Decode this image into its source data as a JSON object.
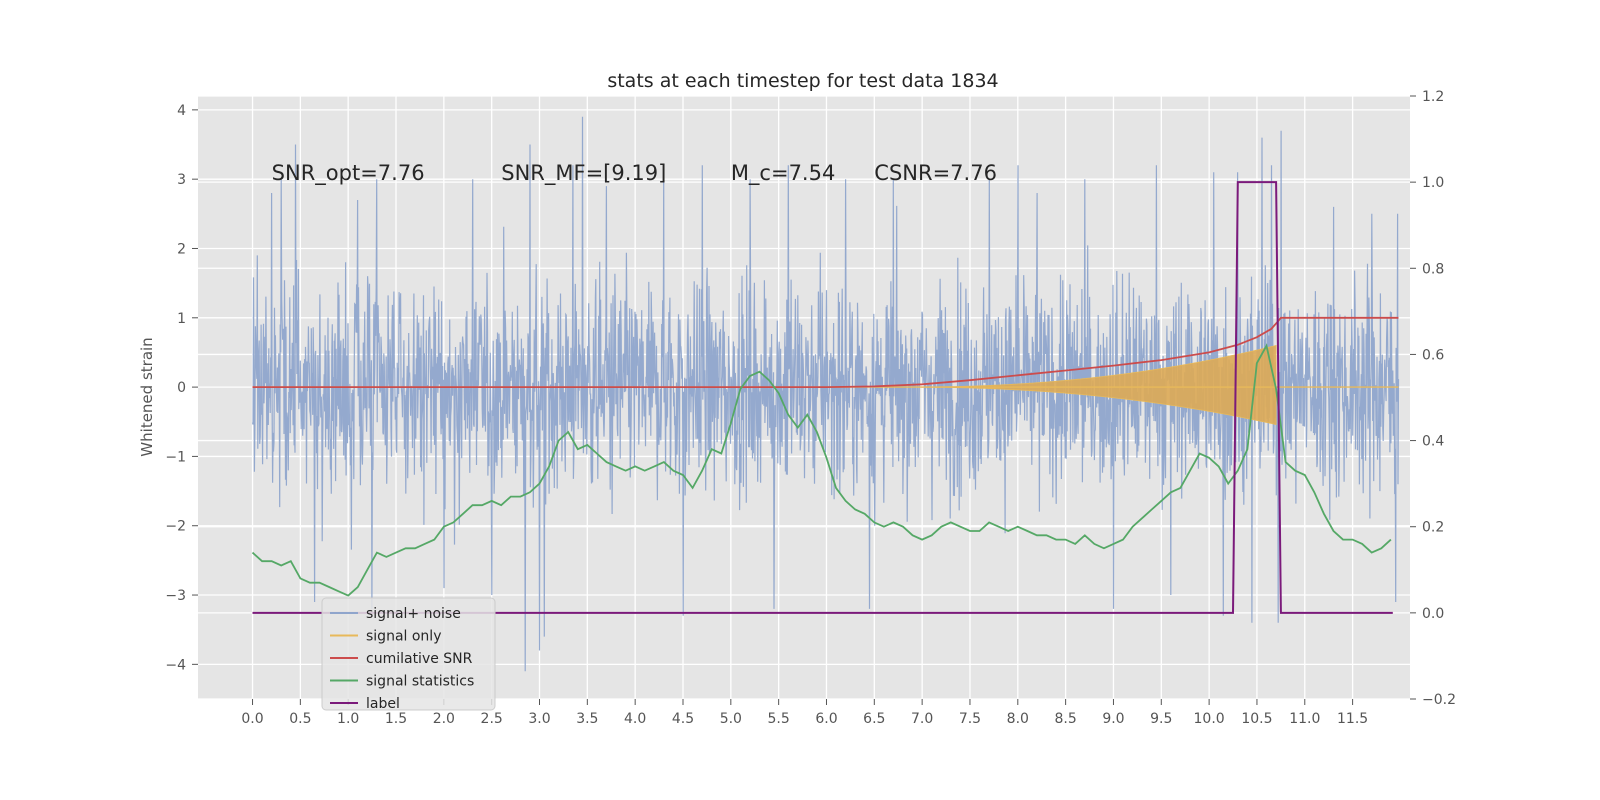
{
  "chart_data": {
    "type": "line",
    "title": "stats at each timestep for test data 1834",
    "ylabel": "Whitened strain",
    "xlim": [
      -0.57,
      12.1
    ],
    "ylim": [
      -4.5,
      4.2
    ],
    "y2lim": [
      -0.2,
      1.2
    ],
    "x_ticks": [
      "0.0",
      "0.5",
      "1.0",
      "1.5",
      "2.0",
      "2.5",
      "3.0",
      "3.5",
      "4.0",
      "4.5",
      "5.0",
      "5.5",
      "6.0",
      "6.5",
      "7.0",
      "7.5",
      "8.0",
      "8.5",
      "9.0",
      "9.5",
      "10.0",
      "10.5",
      "11.0",
      "11.5"
    ],
    "y_ticks": [
      "4",
      "3",
      "2",
      "1",
      "0",
      "−1",
      "−2",
      "−3",
      "−4"
    ],
    "y2_ticks": [
      "1.2",
      "1.0",
      "0.8",
      "0.6",
      "0.4",
      "0.2",
      "0.0",
      "−0.2"
    ],
    "grid": true,
    "legend_position": "lower-left",
    "annotations": [
      {
        "text": "SNR_opt=7.76",
        "x": 0.2,
        "y": 3.0
      },
      {
        "text": "SNR_MF=[9.19]",
        "x": 2.6,
        "y": 3.0
      },
      {
        "text": "M_c=7.54",
        "x": 5.0,
        "y": 3.0
      },
      {
        "text": "CSNR=7.76",
        "x": 6.5,
        "y": 3.0
      }
    ],
    "series": [
      {
        "name": "signal+ noise",
        "axis": "left",
        "color": "#8fa5cc",
        "t_start": 0.0,
        "t_end": 11.98,
        "noise_sigma": 1.0,
        "peaks": [
          [
            0.05,
            1.9
          ],
          [
            0.2,
            2.8
          ],
          [
            0.3,
            3.0
          ],
          [
            0.45,
            3.5
          ],
          [
            0.65,
            -3.1
          ],
          [
            1.1,
            2.7
          ],
          [
            1.3,
            3.0
          ],
          [
            1.25,
            -3.2
          ],
          [
            2.0,
            -2.9
          ],
          [
            2.3,
            3.0
          ],
          [
            2.5,
            -3.0
          ],
          [
            2.85,
            -4.1
          ],
          [
            2.9,
            3.5
          ],
          [
            3.05,
            -3.6
          ],
          [
            3.35,
            3.2
          ],
          [
            3.45,
            3.9
          ],
          [
            3.7,
            2.9
          ],
          [
            4.3,
            3.1
          ],
          [
            4.5,
            -3.3
          ],
          [
            4.7,
            3.2
          ],
          [
            5.2,
            3.0
          ],
          [
            5.45,
            -3.2
          ],
          [
            5.6,
            3.2
          ],
          [
            6.0,
            1.4
          ],
          [
            6.2,
            3.0
          ],
          [
            6.45,
            -3.2
          ],
          [
            6.7,
            3.0
          ],
          [
            7.7,
            3.0
          ],
          [
            8.0,
            3.2
          ],
          [
            8.2,
            2.8
          ],
          [
            8.7,
            3.0
          ],
          [
            9.0,
            -3.2
          ],
          [
            9.45,
            3.2
          ],
          [
            9.6,
            -3.0
          ],
          [
            10.05,
            3.1
          ],
          [
            10.15,
            -3.3
          ],
          [
            10.3,
            3.1
          ],
          [
            10.45,
            3.3
          ],
          [
            10.55,
            3.6
          ],
          [
            10.65,
            3.2
          ],
          [
            10.75,
            3.7
          ],
          [
            10.72,
            -3.4
          ],
          [
            10.45,
            -3.4
          ],
          [
            11.3,
            2.6
          ],
          [
            11.7,
            2.5
          ],
          [
            11.97,
            2.5
          ],
          [
            11.95,
            -3.1
          ],
          [
            3.0,
            -3.8
          ]
        ]
      },
      {
        "name": "signal only",
        "axis": "left",
        "color": "#e8b95a",
        "fill_color": "#ddaa55",
        "onset": 6.8,
        "merger": 10.7,
        "t_end": 11.98,
        "amplitude_at_merger": 0.6
      },
      {
        "name": "cumilative SNR",
        "axis": "left",
        "color": "#cc4c4c",
        "x": [
          0.0,
          6.0,
          6.5,
          7.0,
          7.5,
          8.0,
          8.5,
          9.0,
          9.5,
          10.0,
          10.3,
          10.5,
          10.65,
          10.72,
          10.75,
          11.98
        ],
        "y": [
          0.0,
          0.0,
          0.01,
          0.04,
          0.1,
          0.17,
          0.24,
          0.31,
          0.39,
          0.5,
          0.61,
          0.72,
          0.84,
          0.95,
          1.0,
          1.0
        ]
      },
      {
        "name": "signal statistics",
        "axis": "right",
        "color": "#55a866",
        "x": [
          0.0,
          0.1,
          0.2,
          0.3,
          0.4,
          0.5,
          0.6,
          0.7,
          0.8,
          0.9,
          1.0,
          1.1,
          1.2,
          1.3,
          1.4,
          1.5,
          1.6,
          1.7,
          1.8,
          1.9,
          2.0,
          2.1,
          2.2,
          2.3,
          2.4,
          2.5,
          2.6,
          2.7,
          2.8,
          2.9,
          3.0,
          3.1,
          3.2,
          3.3,
          3.4,
          3.5,
          3.6,
          3.7,
          3.8,
          3.9,
          4.0,
          4.1,
          4.2,
          4.3,
          4.4,
          4.5,
          4.6,
          4.7,
          4.8,
          4.9,
          5.0,
          5.1,
          5.2,
          5.3,
          5.4,
          5.5,
          5.6,
          5.7,
          5.8,
          5.9,
          6.0,
          6.1,
          6.2,
          6.3,
          6.4,
          6.5,
          6.6,
          6.7,
          6.8,
          6.9,
          7.0,
          7.1,
          7.2,
          7.3,
          7.4,
          7.5,
          7.6,
          7.7,
          7.8,
          7.9,
          8.0,
          8.1,
          8.2,
          8.3,
          8.4,
          8.5,
          8.6,
          8.7,
          8.8,
          8.9,
          9.0,
          9.1,
          9.2,
          9.3,
          9.4,
          9.5,
          9.6,
          9.7,
          9.8,
          9.9,
          10.0,
          10.1,
          10.2,
          10.3,
          10.4,
          10.5,
          10.6,
          10.7,
          10.8,
          10.9,
          11.0,
          11.1,
          11.2,
          11.3,
          11.4,
          11.5,
          11.6,
          11.7,
          11.8,
          11.9
        ],
        "y": [
          0.14,
          0.12,
          0.12,
          0.11,
          0.12,
          0.08,
          0.07,
          0.07,
          0.06,
          0.05,
          0.04,
          0.06,
          0.1,
          0.14,
          0.13,
          0.14,
          0.15,
          0.15,
          0.16,
          0.17,
          0.2,
          0.21,
          0.23,
          0.25,
          0.25,
          0.26,
          0.25,
          0.27,
          0.27,
          0.28,
          0.3,
          0.34,
          0.4,
          0.42,
          0.38,
          0.39,
          0.37,
          0.35,
          0.34,
          0.33,
          0.34,
          0.33,
          0.34,
          0.35,
          0.33,
          0.32,
          0.29,
          0.33,
          0.38,
          0.37,
          0.44,
          0.52,
          0.55,
          0.56,
          0.54,
          0.51,
          0.46,
          0.43,
          0.46,
          0.42,
          0.36,
          0.29,
          0.26,
          0.24,
          0.23,
          0.21,
          0.2,
          0.21,
          0.2,
          0.18,
          0.17,
          0.18,
          0.2,
          0.21,
          0.2,
          0.19,
          0.19,
          0.21,
          0.2,
          0.19,
          0.2,
          0.19,
          0.18,
          0.18,
          0.17,
          0.17,
          0.16,
          0.18,
          0.16,
          0.15,
          0.16,
          0.17,
          0.2,
          0.22,
          0.24,
          0.26,
          0.28,
          0.29,
          0.33,
          0.37,
          0.36,
          0.34,
          0.3,
          0.33,
          0.38,
          0.58,
          0.62,
          0.52,
          0.35,
          0.33,
          0.32,
          0.28,
          0.23,
          0.19,
          0.17,
          0.17,
          0.16,
          0.14,
          0.15,
          0.17
        ]
      },
      {
        "name": "label",
        "axis": "right",
        "color": "#7b1a7b",
        "x": [
          0.0,
          10.25,
          10.3,
          10.7,
          10.75,
          11.92
        ],
        "y": [
          0.0,
          0.0,
          1.0,
          1.0,
          0.0,
          0.0
        ]
      }
    ]
  }
}
